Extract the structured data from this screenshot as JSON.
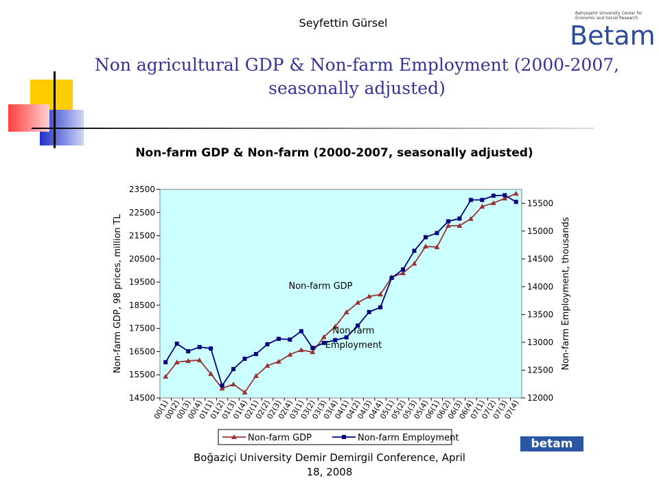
{
  "slide": {
    "author": "Seyfettin Gürsel",
    "title": "Non agricultural GDP & Non-farm Employment (2000-2007, seasonally adjusted)",
    "footer": "Boğaziçi University Demir Demirgil Conference, April 18, 2008",
    "logo": "Betam",
    "logo_subtitle": "Bahçeşehir University Center for Economic and Social Research",
    "logo_small": "betam"
  },
  "chart_data": {
    "type": "line",
    "title": "Non-farm GDP & Non-farm (2000-2007, seasonally adjusted)",
    "y_label": "Non-farm GDP, 98 prices, million TL",
    "y2_label": "Non-farm Employment, thousands",
    "categories": [
      "00(1)",
      "00(2)",
      "00(3)",
      "00(4)",
      "01(1)",
      "01(2)",
      "01(3)",
      "01(4)",
      "02(1)",
      "02(2)",
      "02(3)",
      "02(4)",
      "03(1)",
      "03(2)",
      "03(3)",
      "03(4)",
      "04(1)",
      "04(2)",
      "04(3)",
      "04(4)",
      "05(1)",
      "05(2)",
      "05(3)",
      "05(4)",
      "06(1)",
      "06(2)",
      "06(3)",
      "06(4)",
      "07(1)",
      "07(2)",
      "07(3)",
      "07(4)"
    ],
    "series": [
      {
        "name": "Non-farm GDP",
        "color": "#993333",
        "marker": "triangle",
        "values": [
          15420,
          16040,
          16100,
          16130,
          15540,
          14910,
          15090,
          14740,
          15450,
          15890,
          16070,
          16370,
          16570,
          16480,
          17130,
          17580,
          18200,
          18610,
          18880,
          18970,
          19710,
          19890,
          20300,
          21040,
          21010,
          21930,
          21930,
          22230,
          22760,
          22910,
          23110,
          23320
        ]
      },
      {
        "name": "Non-farm Employment",
        "color": "#000080",
        "marker": "square",
        "axis": "y2",
        "values": [
          12643,
          12976,
          12840,
          12915,
          12890,
          12222,
          12520,
          12705,
          12790,
          12965,
          13063,
          13050,
          13200,
          12900,
          12990,
          13040,
          13090,
          13300,
          13545,
          13630,
          14160,
          14310,
          14645,
          14890,
          14965,
          15175,
          15225,
          15560,
          15560,
          15635,
          15645,
          15525
        ]
      }
    ],
    "annotations": [
      [
        "Non-farm GDP"
      ],
      [
        "Non-farm",
        "Employment"
      ]
    ],
    "ylim": [
      14500,
      23500
    ],
    "yticks": [
      14500,
      15500,
      16500,
      17500,
      18500,
      19500,
      20500,
      21500,
      22500,
      23500
    ],
    "y2lim": [
      12000,
      15750
    ],
    "y2ticks": [
      12000,
      12500,
      13000,
      13500,
      14000,
      14500,
      15000,
      15500
    ],
    "plot_background": "#ccffff",
    "legend": "bottom"
  }
}
